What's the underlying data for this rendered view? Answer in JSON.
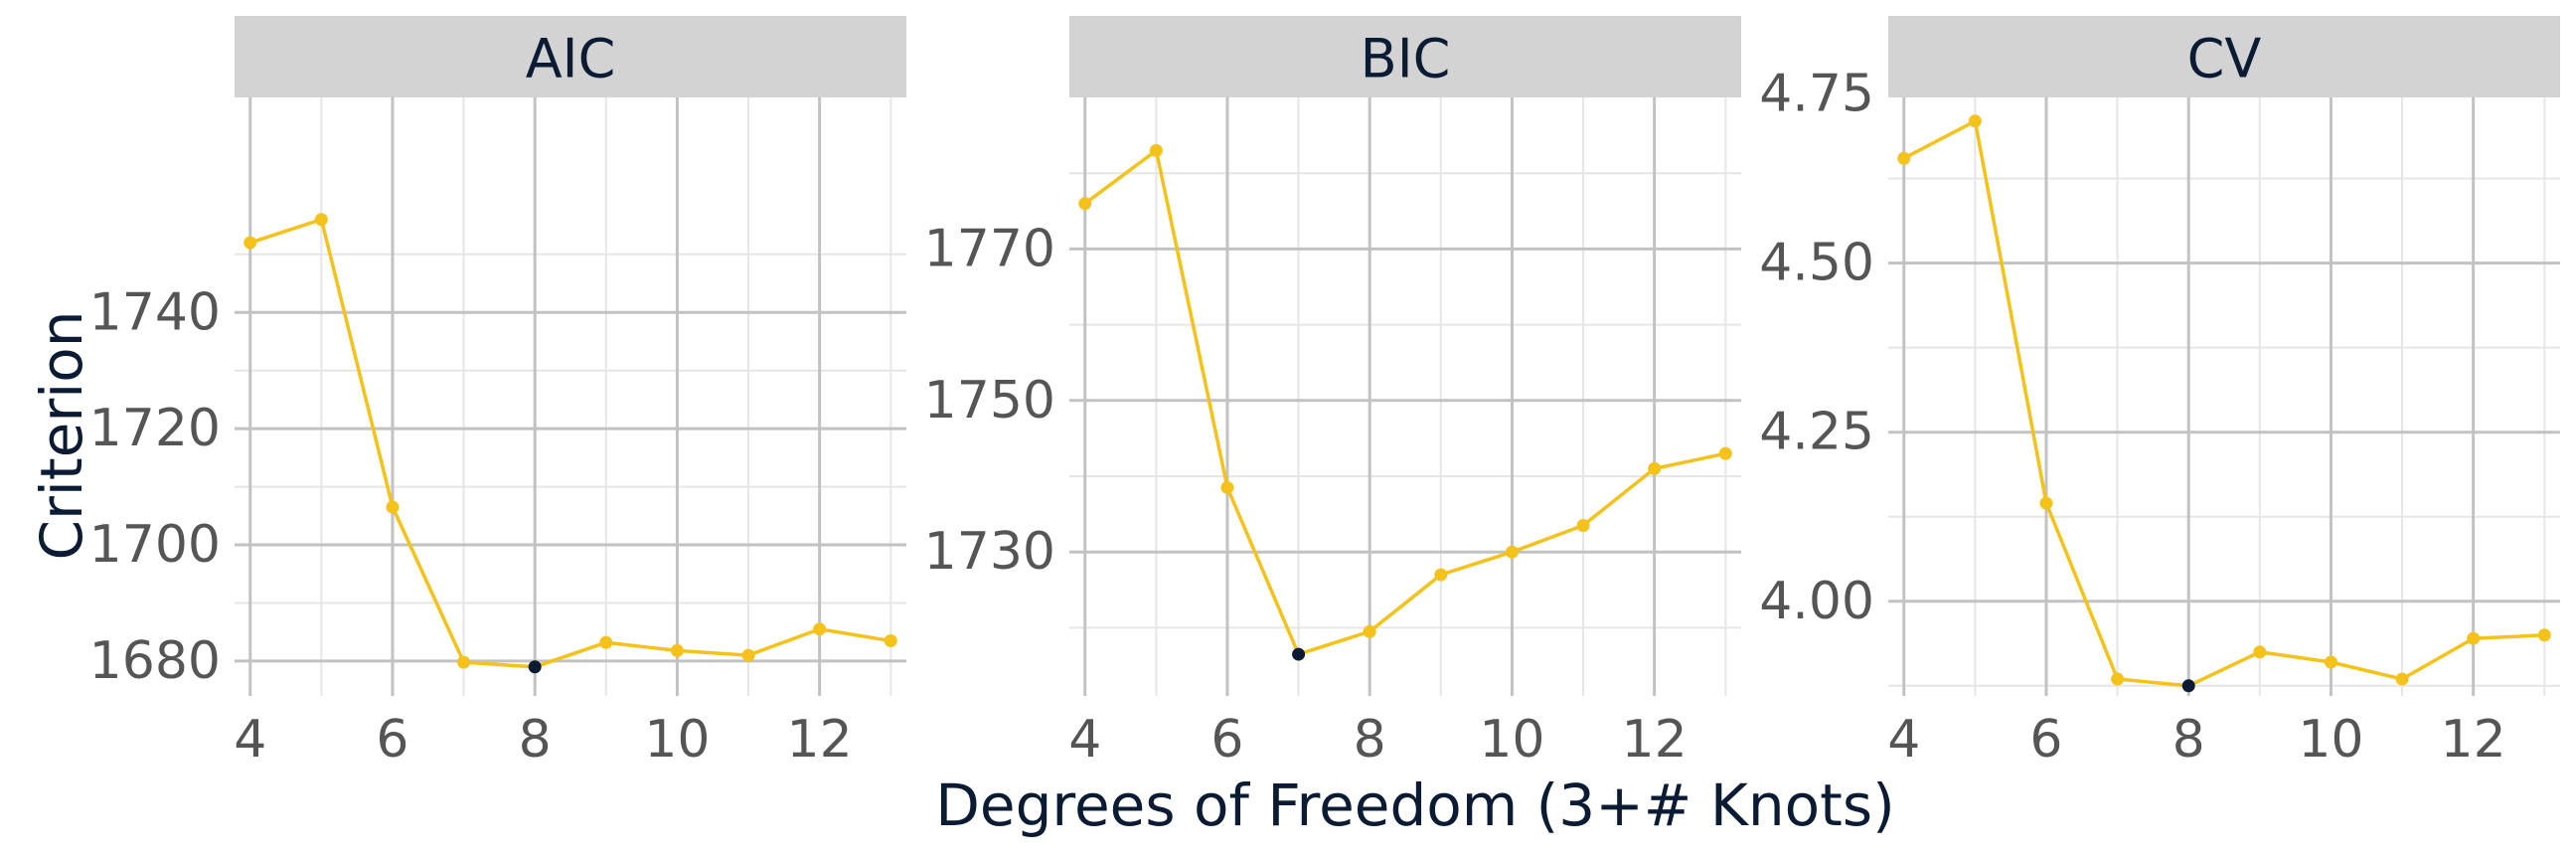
{
  "chart_data": {
    "type": "line",
    "xlabel": "Degrees of Freedom (3+# Knots)",
    "ylabel": "Criterion",
    "x": [
      4,
      5,
      6,
      7,
      8,
      9,
      10,
      11,
      12,
      13
    ],
    "x_ticks": [
      4,
      6,
      8,
      10,
      12
    ],
    "grid": true,
    "colors": {
      "line": "#f5c21b",
      "minimum_point": "#0b1b33",
      "strip": "#d3d3d3"
    },
    "panels": [
      {
        "name": "AIC",
        "values": [
          1752,
          1756,
          1706.5,
          1679.8,
          1679.0,
          1683.2,
          1681.8,
          1681.0,
          1685.5,
          1683.5
        ],
        "ylim": [
          1674,
          1777
        ],
        "y_ticks": [
          1680,
          1700,
          1720,
          1740
        ],
        "minimum_index": 4
      },
      {
        "name": "BIC",
        "values": [
          1776,
          1783,
          1738.5,
          1716.5,
          1719.5,
          1727,
          1730,
          1733.5,
          1741,
          1743
        ],
        "ylim": [
          1711,
          1790
        ],
        "y_ticks": [
          1730,
          1750,
          1770
        ],
        "minimum_index": 3
      },
      {
        "name": "CV",
        "values": [
          4.655,
          4.71,
          4.145,
          3.885,
          3.875,
          3.925,
          3.91,
          3.885,
          3.945,
          3.95
        ],
        "ylim": [
          3.86,
          4.745
        ],
        "y_ticks": [
          4.0,
          4.25,
          4.5,
          4.75
        ],
        "y_tick_labels": [
          "4.00",
          "4.25",
          "4.50",
          "4.75"
        ],
        "minimum_index": 4
      }
    ]
  }
}
